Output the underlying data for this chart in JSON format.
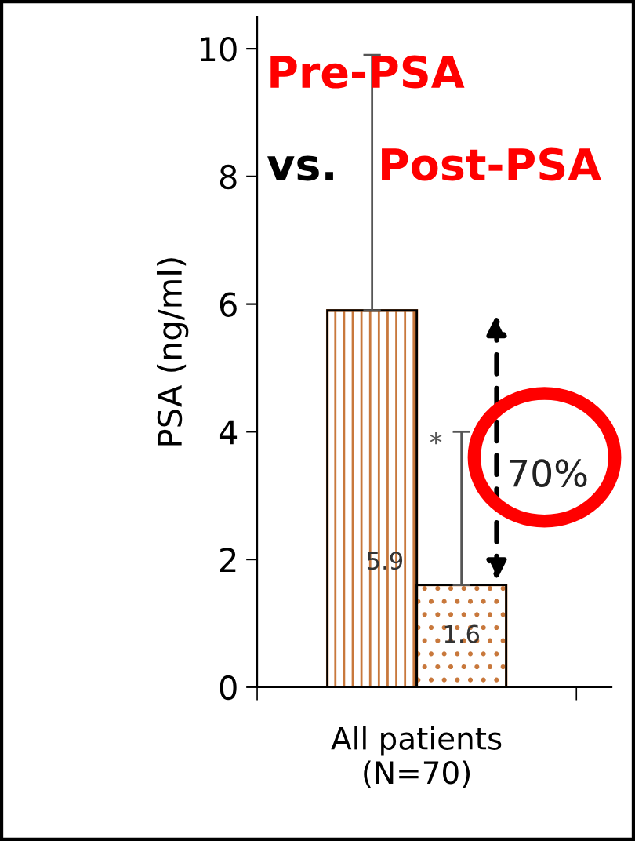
{
  "chart_data": {
    "type": "bar",
    "ylabel": "PSA (ng/ml)",
    "categories": [
      "All patients\n(N=70)"
    ],
    "series": [
      {
        "color": "#c8783c",
        "values": [
          5.9
        ],
        "errors": [
          [
            5.9,
            9.9
          ]
        ]
      },
      {
        "color": "#c8783c",
        "values": [
          1.6
        ],
        "errors": [
          [
            1.6,
            4.0
          ]
        ]
      }
    ],
    "ylim": [
      0,
      10.5
    ],
    "yticks": [
      0,
      2,
      4,
      6,
      8,
      10
    ],
    "data_labels": true,
    "grid": false,
    "legend": false,
    "annotations": [
      "Pre-PSA",
      "vs.",
      "Post-PSA",
      "*",
      "70%"
    ]
  }
}
